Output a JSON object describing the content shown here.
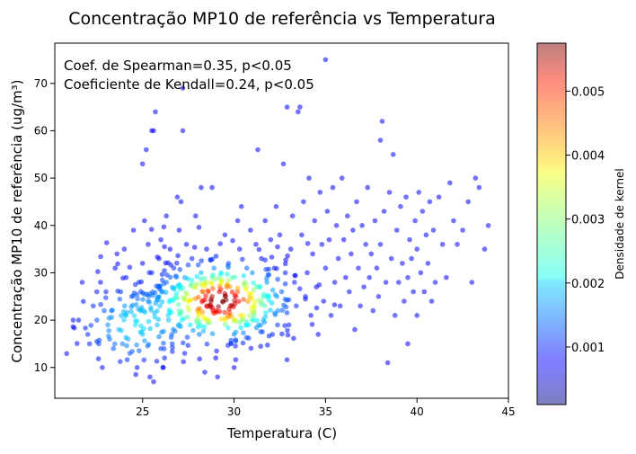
{
  "chart_data": {
    "type": "scatter",
    "title": "Concentração MP10 de referência vs Temperatura",
    "xlabel": "Temperatura (C)",
    "ylabel": "Concentração MP10 de referência (ug/m³)",
    "xlim": [
      20.2,
      45
    ],
    "ylim": [
      3.5,
      78.5
    ],
    "x_ticks": [
      25,
      30,
      35,
      40,
      45
    ],
    "y_ticks": [
      10,
      20,
      30,
      40,
      50,
      60,
      70
    ],
    "grid": false,
    "annotations": [
      "Coef. de Spearman=0.35, p<0.05",
      "Coeficiente de Kendall=0.24, p<0.05"
    ],
    "colorbar": {
      "label": "Densidade de kernel",
      "colormap": "jet",
      "alpha": 0.5,
      "range": [
        0.0001,
        0.00575
      ],
      "ticks": [
        0.001,
        0.002,
        0.003,
        0.004,
        0.005
      ],
      "tick_labels": [
        "0.001",
        "0.002",
        "0.003",
        "0.004",
        "0.005"
      ]
    },
    "points": [
      [
        21.2,
        20
      ],
      [
        21.5,
        20
      ],
      [
        21.7,
        28
      ],
      [
        22,
        17
      ],
      [
        22.1,
        15
      ],
      [
        22.3,
        23
      ],
      [
        22.5,
        26
      ],
      [
        22.5,
        20
      ],
      [
        22.6,
        15
      ],
      [
        22.7,
        28
      ],
      [
        22.8,
        10
      ],
      [
        22.9,
        22
      ],
      [
        23,
        26
      ],
      [
        23.1,
        19
      ],
      [
        23.2,
        16
      ],
      [
        23.3,
        22
      ],
      [
        23.4,
        14
      ],
      [
        23.5,
        31
      ],
      [
        23.6,
        34
      ],
      [
        23.7,
        18
      ],
      [
        23.8,
        26
      ],
      [
        23.9,
        15
      ],
      [
        24,
        35
      ],
      [
        24.1,
        29
      ],
      [
        24.1,
        21
      ],
      [
        24.2,
        16
      ],
      [
        24.3,
        13
      ],
      [
        24.4,
        25
      ],
      [
        24.5,
        39
      ],
      [
        24.6,
        19
      ],
      [
        24.7,
        10
      ],
      [
        24.8,
        28
      ],
      [
        24.9,
        22
      ],
      [
        25,
        32
      ],
      [
        25,
        17
      ],
      [
        25,
        53
      ],
      [
        25.1,
        41
      ],
      [
        25.2,
        56
      ],
      [
        25.3,
        36
      ],
      [
        25.3,
        24
      ],
      [
        25.4,
        8
      ],
      [
        25.5,
        30
      ],
      [
        25.5,
        60
      ],
      [
        25.6,
        60
      ],
      [
        25.6,
        7
      ],
      [
        25.7,
        64
      ],
      [
        25.8,
        19
      ],
      [
        25.9,
        33
      ],
      [
        26,
        37
      ],
      [
        26,
        14
      ],
      [
        26.1,
        26
      ],
      [
        26.2,
        12
      ],
      [
        26.3,
        42
      ],
      [
        26.3,
        28
      ],
      [
        26.4,
        21
      ],
      [
        26.5,
        35
      ],
      [
        26.6,
        17
      ],
      [
        26.7,
        31
      ],
      [
        26.8,
        25
      ],
      [
        26.9,
        46
      ],
      [
        27,
        39
      ],
      [
        27,
        22
      ],
      [
        27.1,
        45
      ],
      [
        27.2,
        60
      ],
      [
        27.2,
        69
      ],
      [
        27.3,
        29
      ],
      [
        27.3,
        13
      ],
      [
        27.4,
        36
      ],
      [
        27.5,
        24
      ],
      [
        27.6,
        19
      ],
      [
        27.7,
        33
      ],
      [
        27.8,
        27
      ],
      [
        27.9,
        42
      ],
      [
        28,
        22
      ],
      [
        28.1,
        17
      ],
      [
        28.2,
        30
      ],
      [
        28.2,
        48
      ],
      [
        28.3,
        26
      ],
      [
        28.4,
        9
      ],
      [
        28.5,
        35
      ],
      [
        28.5,
        23
      ],
      [
        28.6,
        20
      ],
      [
        28.7,
        28
      ],
      [
        28.8,
        25
      ],
      [
        28.8,
        48
      ],
      [
        28.9,
        31
      ],
      [
        29,
        22
      ],
      [
        29,
        12
      ],
      [
        29.1,
        8
      ],
      [
        29.2,
        26
      ],
      [
        29.3,
        30
      ],
      [
        29.4,
        24
      ],
      [
        29.5,
        20
      ],
      [
        29.5,
        38
      ],
      [
        29.6,
        27
      ],
      [
        29.7,
        32
      ],
      [
        29.8,
        23
      ],
      [
        29.9,
        29
      ],
      [
        30,
        17
      ],
      [
        30,
        10
      ],
      [
        30.1,
        25
      ],
      [
        30.2,
        41
      ],
      [
        30.3,
        35
      ],
      [
        30.4,
        44
      ],
      [
        30.5,
        21
      ],
      [
        30.6,
        28
      ],
      [
        30.7,
        31
      ],
      [
        30.8,
        19
      ],
      [
        30.9,
        39
      ],
      [
        31,
        30
      ],
      [
        31.1,
        23
      ],
      [
        31.2,
        36
      ],
      [
        31.3,
        56
      ],
      [
        31.4,
        27
      ],
      [
        31.5,
        33
      ],
      [
        31.6,
        20
      ],
      [
        31.7,
        41
      ],
      [
        31.8,
        28
      ],
      [
        31.9,
        25
      ],
      [
        32,
        37
      ],
      [
        32.1,
        17
      ],
      [
        32.2,
        31
      ],
      [
        32.3,
        44
      ],
      [
        32.4,
        22
      ],
      [
        32.5,
        38
      ],
      [
        32.6,
        26
      ],
      [
        32.7,
        53
      ],
      [
        32.8,
        30
      ],
      [
        32.9,
        65
      ],
      [
        33,
        19
      ],
      [
        33.1,
        35
      ],
      [
        33.2,
        42
      ],
      [
        33.3,
        28
      ],
      [
        33.4,
        23
      ],
      [
        33.5,
        64
      ],
      [
        33.6,
        65
      ],
      [
        33.7,
        38
      ],
      [
        33.8,
        45
      ],
      [
        33.9,
        25
      ],
      [
        34,
        30
      ],
      [
        34.1,
        50
      ],
      [
        34.2,
        21
      ],
      [
        34.3,
        34
      ],
      [
        34.4,
        41
      ],
      [
        34.5,
        27
      ],
      [
        34.6,
        17
      ],
      [
        34.7,
        47
      ],
      [
        34.8,
        36
      ],
      [
        34.9,
        24
      ],
      [
        35,
        75
      ],
      [
        35,
        31
      ],
      [
        35.1,
        43
      ],
      [
        35.2,
        37
      ],
      [
        35.3,
        21
      ],
      [
        35.4,
        48
      ],
      [
        35.5,
        28
      ],
      [
        35.6,
        40
      ],
      [
        35.7,
        33
      ],
      [
        35.8,
        23
      ],
      [
        35.9,
        50
      ],
      [
        36,
        37
      ],
      [
        36.1,
        29
      ],
      [
        36.2,
        42
      ],
      [
        36.3,
        26
      ],
      [
        36.4,
        34
      ],
      [
        36.5,
        39
      ],
      [
        36.6,
        18
      ],
      [
        36.7,
        45
      ],
      [
        36.8,
        31
      ],
      [
        36.9,
        23
      ],
      [
        37,
        40
      ],
      [
        37.1,
        27
      ],
      [
        37.2,
        36
      ],
      [
        37.3,
        48
      ],
      [
        37.4,
        29
      ],
      [
        37.5,
        34
      ],
      [
        37.6,
        22
      ],
      [
        37.7,
        41
      ],
      [
        37.8,
        31
      ],
      [
        37.9,
        25
      ],
      [
        38,
        58
      ],
      [
        38,
        36
      ],
      [
        38.1,
        62
      ],
      [
        38.2,
        43
      ],
      [
        38.3,
        28
      ],
      [
        38.4,
        11
      ],
      [
        38.5,
        47
      ],
      [
        38.6,
        33
      ],
      [
        38.7,
        55
      ],
      [
        38.8,
        21
      ],
      [
        38.9,
        39
      ],
      [
        39,
        28
      ],
      [
        39.1,
        44
      ],
      [
        39.2,
        32
      ],
      [
        39.3,
        24
      ],
      [
        39.4,
        46
      ],
      [
        39.5,
        29
      ],
      [
        39.5,
        15
      ],
      [
        39.6,
        37
      ],
      [
        39.7,
        33
      ],
      [
        39.8,
        26
      ],
      [
        39.9,
        41
      ],
      [
        40,
        35
      ],
      [
        40,
        21
      ],
      [
        40.1,
        47
      ],
      [
        40.2,
        30
      ],
      [
        40.3,
        43
      ],
      [
        40.4,
        26
      ],
      [
        40.5,
        38
      ],
      [
        40.6,
        32
      ],
      [
        40.7,
        45
      ],
      [
        40.8,
        24
      ],
      [
        40.9,
        39
      ],
      [
        41,
        28
      ],
      [
        41.2,
        46
      ],
      [
        41.4,
        36
      ],
      [
        41.6,
        29
      ],
      [
        41.8,
        49
      ],
      [
        42,
        41
      ],
      [
        42.2,
        36
      ],
      [
        42.5,
        39
      ],
      [
        42.8,
        45
      ],
      [
        43,
        28
      ],
      [
        43.2,
        50
      ],
      [
        43.4,
        48
      ],
      [
        43.7,
        35
      ],
      [
        43.9,
        40
      ]
    ]
  }
}
